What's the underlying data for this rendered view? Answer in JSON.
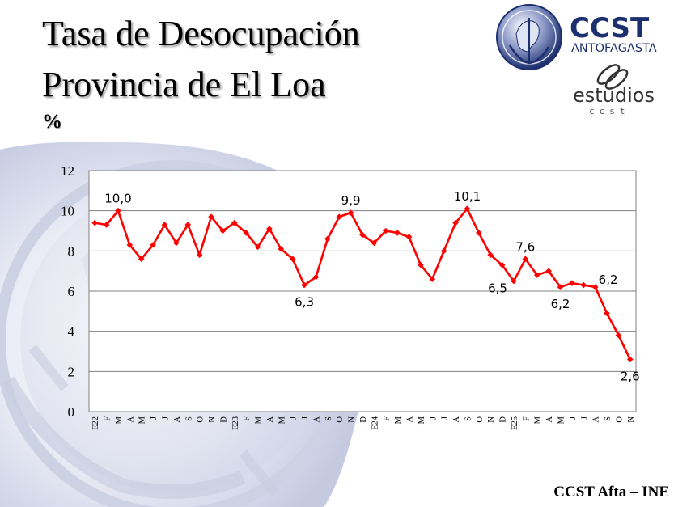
{
  "header": {
    "title_line1": "Tasa de Desocupación",
    "title_line2": "Provincia de El Loa",
    "unit": "%"
  },
  "logo": {
    "name": "CCST",
    "subtitle": "ANTOFAGASTA",
    "estudios": "estudios",
    "estudios_sub": "ccst",
    "primary_color": "#1c2f6e",
    "emblem": "hermes-anchor-emblem"
  },
  "source": "CCST Afta – INE",
  "chart_data": {
    "type": "line",
    "title": "",
    "xlabel": "",
    "ylabel": "",
    "ylim": [
      0,
      12
    ],
    "yticks": [
      0,
      2,
      4,
      6,
      8,
      10,
      12
    ],
    "grid": true,
    "legend": "none",
    "line_color": "#ff0000",
    "categories": [
      "E22",
      "F",
      "M",
      "A",
      "M",
      "J",
      "J",
      "A",
      "S",
      "O",
      "N",
      "D",
      "E23",
      "F",
      "M",
      "A",
      "M",
      "J",
      "J",
      "A",
      "S",
      "O",
      "N",
      "D",
      "E24",
      "F",
      "M",
      "A",
      "M",
      "J",
      "J",
      "A",
      "S",
      "O",
      "N",
      "D",
      "E25",
      "F",
      "M",
      "A",
      "M",
      "J",
      "J",
      "A",
      "S",
      "O",
      "N"
    ],
    "series": [
      {
        "values": [
          9.4,
          9.3,
          10.0,
          8.3,
          7.6,
          8.3,
          9.3,
          8.4,
          9.3,
          7.8,
          9.7,
          9.0,
          9.4,
          8.9,
          8.2,
          9.1,
          8.1,
          7.6,
          6.3,
          6.7,
          8.6,
          9.7,
          9.9,
          8.8,
          8.4,
          9.0,
          8.9,
          8.7,
          7.3,
          6.6,
          8.0,
          9.4,
          10.1,
          8.9,
          7.8,
          7.3,
          6.5,
          7.6,
          6.8,
          7.0,
          6.2,
          6.4,
          6.3,
          6.2,
          4.9,
          3.8,
          2.6
        ]
      }
    ],
    "data_labels": [
      {
        "index": 2,
        "text": "10,0",
        "pos": "above"
      },
      {
        "index": 18,
        "text": "6,3",
        "pos": "below"
      },
      {
        "index": 22,
        "text": "9,9",
        "pos": "above"
      },
      {
        "index": 32,
        "text": "10,1",
        "pos": "above"
      },
      {
        "index": 36,
        "text": "6,5",
        "pos": "left"
      },
      {
        "index": 37,
        "text": "7,6",
        "pos": "above"
      },
      {
        "index": 40,
        "text": "6,2",
        "pos": "below"
      },
      {
        "index": 43,
        "text": "6,2",
        "pos": "above-right"
      },
      {
        "index": 46,
        "text": "2,6",
        "pos": "below"
      }
    ]
  }
}
